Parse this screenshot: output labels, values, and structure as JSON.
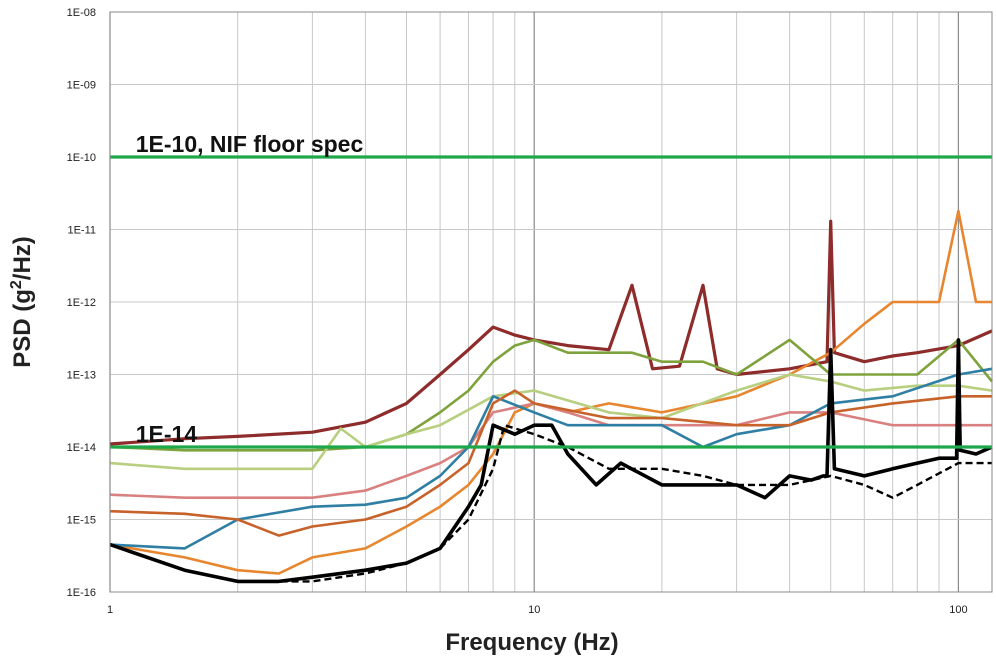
{
  "chart_data": {
    "type": "line",
    "title": "",
    "xlabel": "Frequency (Hz)",
    "ylabel_main": "PSD (g",
    "ylabel_sup": "2",
    "ylabel_end": "/Hz)",
    "x_scale": "log",
    "y_scale": "log",
    "xlim": [
      1,
      120
    ],
    "ylim": [
      1e-16,
      1e-08
    ],
    "x_ticks": [
      {
        "v": 1,
        "label": "1"
      },
      {
        "v": 10,
        "label": "10"
      },
      {
        "v": 100,
        "label": "100"
      }
    ],
    "y_ticks": [
      {
        "v": 1e-16,
        "label": "1E-16"
      },
      {
        "v": 1e-15,
        "label": "1E-15"
      },
      {
        "v": 1e-14,
        "label": "1E-14"
      },
      {
        "v": 1e-13,
        "label": "1E-13"
      },
      {
        "v": 1e-12,
        "label": "1E-12"
      },
      {
        "v": 1e-11,
        "label": "1E-11"
      },
      {
        "v": 1e-10,
        "label": "1E-10"
      },
      {
        "v": 1e-09,
        "label": "1E-09"
      },
      {
        "v": 1e-08,
        "label": "1E-08"
      }
    ],
    "grid": true,
    "legend": "none",
    "reference_lines": [
      {
        "y": 1e-10,
        "color": "#1fa84a",
        "label": "1E-10, NIF floor spec",
        "label_x": 1.15
      },
      {
        "y": 1e-14,
        "color": "#1fa84a",
        "label": "1E-14",
        "label_x": 1.15
      }
    ],
    "series": [
      {
        "color": "#8e2b2b",
        "style": "solid",
        "width": 3.2,
        "points": [
          [
            1,
            1.1e-14
          ],
          [
            1.5,
            1.3e-14
          ],
          [
            2,
            1.4e-14
          ],
          [
            3,
            1.6e-14
          ],
          [
            4,
            2.2e-14
          ],
          [
            5,
            4e-14
          ],
          [
            6,
            1e-13
          ],
          [
            7,
            2.2e-13
          ],
          [
            8,
            4.5e-13
          ],
          [
            9,
            3.5e-13
          ],
          [
            10,
            3e-13
          ],
          [
            12,
            2.5e-13
          ],
          [
            15,
            2.2e-13
          ],
          [
            17,
            1.7e-12
          ],
          [
            19,
            1.2e-13
          ],
          [
            22,
            1.3e-13
          ],
          [
            25,
            1.7e-12
          ],
          [
            27,
            1.2e-13
          ],
          [
            30,
            1e-13
          ],
          [
            40,
            1.2e-13
          ],
          [
            49,
            1.5e-13
          ],
          [
            50,
            1.3e-11
          ],
          [
            51,
            2e-13
          ],
          [
            60,
            1.5e-13
          ],
          [
            70,
            1.8e-13
          ],
          [
            80,
            2e-13
          ],
          [
            100,
            2.5e-13
          ],
          [
            120,
            4e-13
          ]
        ]
      },
      {
        "color": "#e8862f",
        "style": "solid",
        "width": 2.6,
        "points": [
          [
            1,
            4.5e-16
          ],
          [
            1.5,
            3e-16
          ],
          [
            2,
            2e-16
          ],
          [
            2.5,
            1.8e-16
          ],
          [
            3,
            3e-16
          ],
          [
            4,
            4e-16
          ],
          [
            5,
            8e-16
          ],
          [
            6,
            1.5e-15
          ],
          [
            7,
            3e-15
          ],
          [
            8,
            8e-15
          ],
          [
            9,
            3e-14
          ],
          [
            10,
            4e-14
          ],
          [
            12,
            3e-14
          ],
          [
            15,
            4e-14
          ],
          [
            20,
            3e-14
          ],
          [
            30,
            5e-14
          ],
          [
            40,
            1e-13
          ],
          [
            50,
            2e-13
          ],
          [
            60,
            5e-13
          ],
          [
            70,
            1e-12
          ],
          [
            80,
            1e-12
          ],
          [
            90,
            1e-12
          ],
          [
            100,
            1.8e-11
          ],
          [
            110,
            1e-12
          ],
          [
            120,
            1e-12
          ]
        ]
      },
      {
        "color": "#7fa33c",
        "style": "solid",
        "width": 2.6,
        "points": [
          [
            1,
            1e-14
          ],
          [
            1.5,
            9e-15
          ],
          [
            2,
            9e-15
          ],
          [
            3,
            9e-15
          ],
          [
            4,
            1e-14
          ],
          [
            5,
            1.5e-14
          ],
          [
            6,
            3e-14
          ],
          [
            7,
            6e-14
          ],
          [
            8,
            1.5e-13
          ],
          [
            9,
            2.5e-13
          ],
          [
            10,
            3e-13
          ],
          [
            12,
            2e-13
          ],
          [
            15,
            2e-13
          ],
          [
            17,
            2e-13
          ],
          [
            20,
            1.5e-13
          ],
          [
            25,
            1.5e-13
          ],
          [
            30,
            1e-13
          ],
          [
            40,
            3e-13
          ],
          [
            50,
            1e-13
          ],
          [
            60,
            1e-13
          ],
          [
            80,
            1e-13
          ],
          [
            100,
            3e-13
          ],
          [
            120,
            8e-14
          ]
        ]
      },
      {
        "color": "#b7cf7e",
        "style": "solid",
        "width": 2.6,
        "points": [
          [
            1,
            6e-15
          ],
          [
            1.5,
            5e-15
          ],
          [
            2,
            5e-15
          ],
          [
            3,
            5e-15
          ],
          [
            3.5,
            1.8e-14
          ],
          [
            4,
            1e-14
          ],
          [
            5,
            1.5e-14
          ],
          [
            6,
            2e-14
          ],
          [
            8,
            5e-14
          ],
          [
            10,
            6e-14
          ],
          [
            15,
            3e-14
          ],
          [
            20,
            2.5e-14
          ],
          [
            30,
            6e-14
          ],
          [
            40,
            1e-13
          ],
          [
            50,
            8e-14
          ],
          [
            60,
            6e-14
          ],
          [
            80,
            7e-14
          ],
          [
            100,
            7e-14
          ],
          [
            120,
            6e-14
          ]
        ]
      },
      {
        "color": "#d98080",
        "style": "solid",
        "width": 2.6,
        "points": [
          [
            1,
            2.2e-15
          ],
          [
            1.5,
            2e-15
          ],
          [
            2,
            2e-15
          ],
          [
            3,
            2e-15
          ],
          [
            4,
            2.5e-15
          ],
          [
            5,
            4e-15
          ],
          [
            6,
            6e-15
          ],
          [
            7,
            1e-14
          ],
          [
            8,
            3e-14
          ],
          [
            10,
            4e-14
          ],
          [
            12,
            3e-14
          ],
          [
            15,
            2e-14
          ],
          [
            20,
            2e-14
          ],
          [
            30,
            2e-14
          ],
          [
            40,
            3e-14
          ],
          [
            50,
            3e-14
          ],
          [
            70,
            2e-14
          ],
          [
            100,
            2e-14
          ],
          [
            120,
            2e-14
          ]
        ]
      },
      {
        "color": "#2e7fa3",
        "style": "solid",
        "width": 2.6,
        "points": [
          [
            1,
            4.5e-16
          ],
          [
            1.5,
            4e-16
          ],
          [
            2,
            1e-15
          ],
          [
            3,
            1.5e-15
          ],
          [
            4,
            1.6e-15
          ],
          [
            5,
            2e-15
          ],
          [
            6,
            4e-15
          ],
          [
            7,
            1e-14
          ],
          [
            8,
            5e-14
          ],
          [
            10,
            3e-14
          ],
          [
            12,
            2e-14
          ],
          [
            15,
            2e-14
          ],
          [
            20,
            2e-14
          ],
          [
            25,
            1e-14
          ],
          [
            30,
            1.5e-14
          ],
          [
            40,
            2e-14
          ],
          [
            50,
            4e-14
          ],
          [
            70,
            5e-14
          ],
          [
            100,
            1e-13
          ],
          [
            120,
            1.2e-13
          ]
        ]
      },
      {
        "color": "#c6622a",
        "style": "solid",
        "width": 2.6,
        "points": [
          [
            1,
            1.3e-15
          ],
          [
            1.5,
            1.2e-15
          ],
          [
            2,
            1e-15
          ],
          [
            2.5,
            6e-16
          ],
          [
            3,
            8e-16
          ],
          [
            4,
            1e-15
          ],
          [
            5,
            1.5e-15
          ],
          [
            6,
            3e-15
          ],
          [
            7,
            6e-15
          ],
          [
            8,
            4e-14
          ],
          [
            9,
            6e-14
          ],
          [
            10,
            4e-14
          ],
          [
            15,
            2.5e-14
          ],
          [
            20,
            2.5e-14
          ],
          [
            30,
            2e-14
          ],
          [
            40,
            2e-14
          ],
          [
            50,
            3e-14
          ],
          [
            70,
            4e-14
          ],
          [
            100,
            5e-14
          ],
          [
            120,
            5e-14
          ]
        ]
      },
      {
        "color": "#000000",
        "style": "solid",
        "width": 3.6,
        "points": [
          [
            1,
            4.5e-16
          ],
          [
            1.5,
            2e-16
          ],
          [
            2,
            1.4e-16
          ],
          [
            2.5,
            1.4e-16
          ],
          [
            3,
            1.6e-16
          ],
          [
            4,
            2e-16
          ],
          [
            5,
            2.5e-16
          ],
          [
            6,
            4e-16
          ],
          [
            7,
            1.5e-15
          ],
          [
            7.5,
            3e-15
          ],
          [
            8,
            2e-14
          ],
          [
            9,
            1.5e-14
          ],
          [
            10,
            2e-14
          ],
          [
            11,
            2e-14
          ],
          [
            12,
            8e-15
          ],
          [
            14,
            3e-15
          ],
          [
            16,
            6e-15
          ],
          [
            20,
            3e-15
          ],
          [
            25,
            3e-15
          ],
          [
            30,
            3e-15
          ],
          [
            35,
            2e-15
          ],
          [
            40,
            4e-15
          ],
          [
            45,
            3.5e-15
          ],
          [
            48,
            4e-15
          ],
          [
            49,
            4e-15
          ],
          [
            50,
            2.2e-13
          ],
          [
            51,
            5e-15
          ],
          [
            60,
            4e-15
          ],
          [
            70,
            5e-15
          ],
          [
            80,
            6e-15
          ],
          [
            90,
            7e-15
          ],
          [
            99,
            7e-15
          ],
          [
            100,
            3e-13
          ],
          [
            101,
            9e-15
          ],
          [
            110,
            8e-15
          ],
          [
            120,
            1e-14
          ]
        ]
      },
      {
        "color": "#000000",
        "style": "dashed",
        "width": 2.4,
        "points": [
          [
            1,
            4.5e-16
          ],
          [
            1.5,
            2e-16
          ],
          [
            2,
            1.4e-16
          ],
          [
            3,
            1.4e-16
          ],
          [
            4,
            1.8e-16
          ],
          [
            5,
            2.5e-16
          ],
          [
            6,
            4e-16
          ],
          [
            7,
            1e-15
          ],
          [
            8,
            5e-15
          ],
          [
            8.5,
            2e-14
          ],
          [
            10,
            1.5e-14
          ],
          [
            12,
            1e-14
          ],
          [
            15,
            5e-15
          ],
          [
            20,
            5e-15
          ],
          [
            25,
            4e-15
          ],
          [
            30,
            3e-15
          ],
          [
            40,
            3e-15
          ],
          [
            50,
            4e-15
          ],
          [
            60,
            3e-15
          ],
          [
            70,
            2e-15
          ],
          [
            80,
            3e-15
          ],
          [
            100,
            6e-15
          ],
          [
            120,
            6e-15
          ]
        ]
      }
    ]
  }
}
